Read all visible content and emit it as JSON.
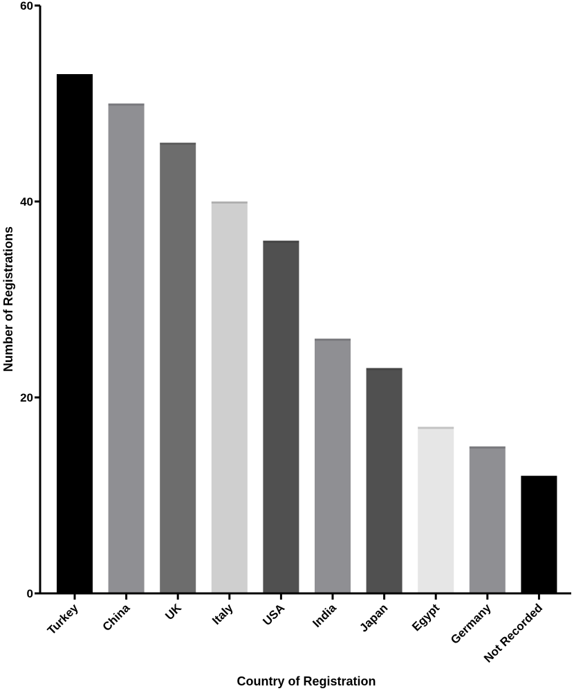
{
  "chart_data": {
    "type": "bar",
    "title": "",
    "xlabel": "Country of Registration",
    "ylabel": "Number of Registrations",
    "ylim": [
      0,
      60
    ],
    "yticks": [
      0,
      20,
      40,
      60
    ],
    "grid": false,
    "categories": [
      "Turkey",
      "China",
      "UK",
      "Italy",
      "USA",
      "India",
      "Japan",
      "Egypt",
      "Germany",
      "Not Recorded"
    ],
    "values": [
      53,
      50,
      46,
      40,
      36,
      26,
      23,
      17,
      15,
      12
    ],
    "colors": [
      "#000000",
      "#8f8f93",
      "#6d6d6d",
      "#cfcfcf",
      "#505050",
      "#8f8f93",
      "#505050",
      "#e6e6e6",
      "#8f8f93",
      "#000000"
    ]
  }
}
